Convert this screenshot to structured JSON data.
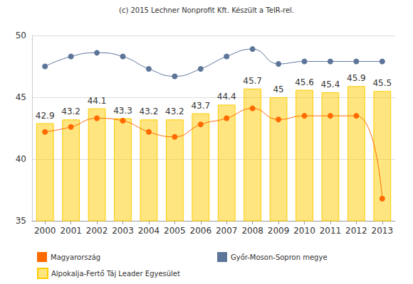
{
  "chart_data": {
    "type": "bar",
    "title": "(c) 2015 Lechner Nonprofit Kft. Készült a TeIR-rel.",
    "categories": [
      "2000",
      "2001",
      "2002",
      "2003",
      "2004",
      "2005",
      "2006",
      "2007",
      "2008",
      "2009",
      "2010",
      "2011",
      "2012",
      "2013"
    ],
    "series": [
      {
        "name": "Magyarország",
        "type": "line",
        "color": "#ff6a00",
        "marker": "circle",
        "line_style": "solid",
        "values": [
          42.2,
          42.6,
          43.3,
          43.1,
          42.2,
          41.8,
          42.8,
          43.3,
          44.1,
          43.2,
          43.5,
          43.5,
          43.5,
          36.8
        ]
      },
      {
        "name": "Győr-Moson-Sopron megye",
        "type": "line",
        "color": "#5c7599",
        "marker": "circle",
        "line_style": "solid",
        "values": [
          47.5,
          48.3,
          48.6,
          48.3,
          47.3,
          46.7,
          47.3,
          48.3,
          48.9,
          47.7,
          47.9,
          47.9,
          47.9,
          47.9
        ]
      },
      {
        "name": "Alpokalja-Fertő Táj Leader Egyesület",
        "type": "bar",
        "color": "#ffcc00",
        "data_labels": true,
        "values": [
          42.9,
          43.2,
          44.1,
          43.3,
          43.2,
          43.2,
          43.7,
          44.4,
          45.7,
          45,
          45.6,
          45.4,
          45.9,
          45.5
        ]
      }
    ],
    "ylim": [
      35,
      50
    ],
    "yticks": [
      35,
      40,
      45,
      50
    ],
    "grid": true,
    "legend": "bottom"
  }
}
